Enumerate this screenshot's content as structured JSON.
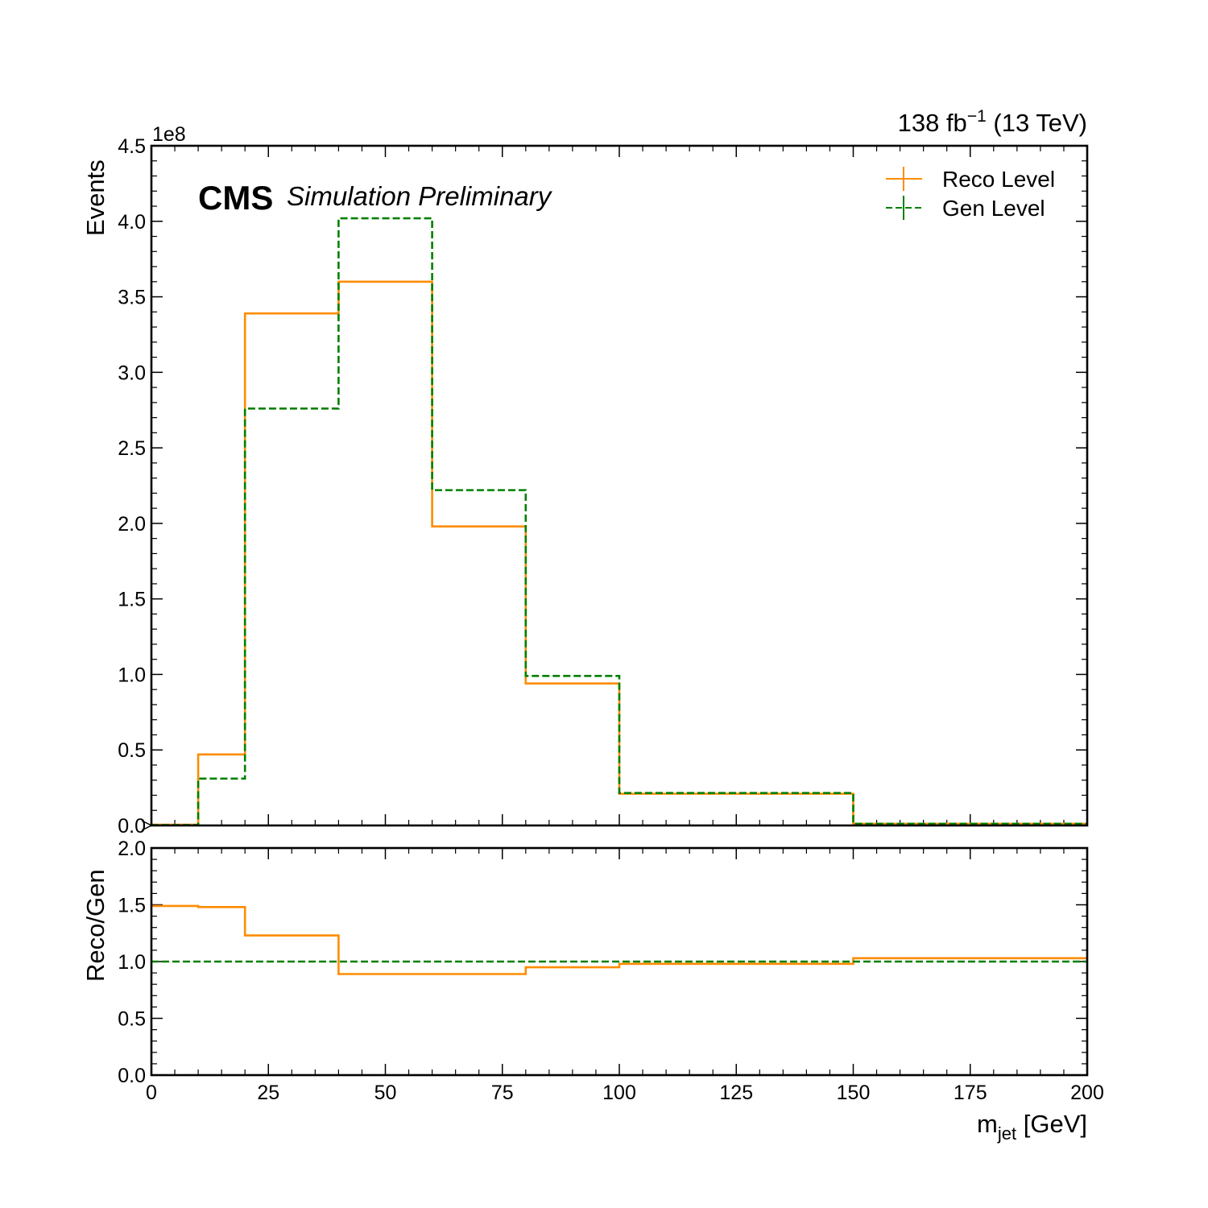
{
  "header": {
    "lumi_value": "138 fb",
    "lumi_exponent": "−1",
    "energy": "(13 TeV)",
    "cms": "CMS",
    "cms_extra": "Simulation Preliminary"
  },
  "colors": {
    "reco": "#ff8c00",
    "gen": "#008000"
  },
  "chart_data": [
    {
      "type": "line",
      "panel": "main",
      "ylabel": "Events",
      "y_multiplier": "1e8",
      "ylim": [
        0,
        4.5
      ],
      "xlim": [
        0,
        200
      ],
      "yticks": [
        0.0,
        0.5,
        1.0,
        1.5,
        2.0,
        2.5,
        3.0,
        3.5,
        4.0,
        4.5
      ],
      "ytick_labels": [
        "0.0",
        "0.5",
        "1.0",
        "1.5",
        "2.0",
        "2.5",
        "3.0",
        "3.5",
        "4.0",
        "4.5"
      ],
      "bin_edges": [
        0,
        10,
        20,
        40,
        60,
        80,
        100,
        150,
        200
      ],
      "series": [
        {
          "name": "Reco Level",
          "style": "solid",
          "values": [
            0.005,
            0.47,
            3.39,
            3.6,
            1.98,
            0.94,
            0.21,
            0.011
          ]
        },
        {
          "name": "Gen Level",
          "style": "dashed",
          "values": [
            0.003,
            0.31,
            2.76,
            4.02,
            2.22,
            0.99,
            0.215,
            0.011
          ]
        }
      ],
      "legend": "top-right"
    },
    {
      "type": "line",
      "panel": "ratio",
      "ylabel": "Reco/Gen",
      "xlabel": "m",
      "xlabel_sub": "jet",
      "xlabel_unit": " [GeV]",
      "ylim": [
        0,
        2
      ],
      "xlim": [
        0,
        200
      ],
      "yticks": [
        0.0,
        0.5,
        1.0,
        1.5,
        2.0
      ],
      "ytick_labels": [
        "0.0",
        "0.5",
        "1.0",
        "1.5",
        "2.0"
      ],
      "xticks": [
        0,
        25,
        50,
        75,
        100,
        125,
        150,
        175,
        200
      ],
      "xtick_labels": [
        "0",
        "25",
        "50",
        "75",
        "100",
        "125",
        "150",
        "175",
        "200"
      ],
      "bin_edges": [
        0,
        10,
        20,
        40,
        60,
        80,
        100,
        150,
        200
      ],
      "series": [
        {
          "name": "Reco Level",
          "style": "solid",
          "values": [
            1.49,
            1.48,
            1.23,
            0.89,
            0.89,
            0.95,
            0.98,
            1.03
          ]
        },
        {
          "name": "Gen Level",
          "style": "dashed",
          "values": [
            1.0,
            1.0,
            1.0,
            1.0,
            1.0,
            1.0,
            1.0,
            1.0
          ]
        }
      ]
    }
  ]
}
